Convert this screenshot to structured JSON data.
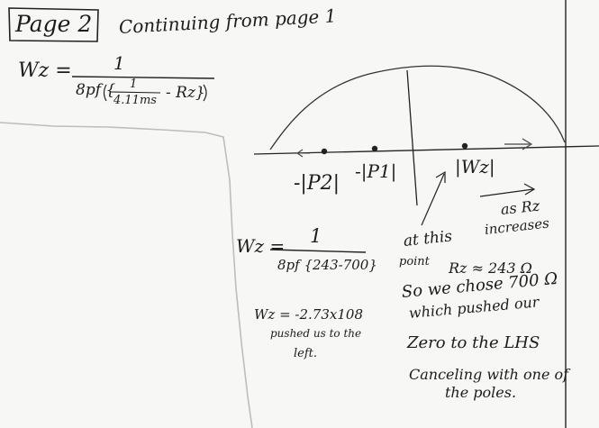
{
  "header": {
    "page_label": "Page 2",
    "continuing": "Continuing from page 1"
  },
  "eq1": {
    "lhs": "Wz =",
    "numerator": "1",
    "denominator_prefix": "8pf {",
    "inner_numerator": "1",
    "inner_denominator": "4.11ms",
    "denominator_suffix": "- Rz}"
  },
  "axis_labels": {
    "p2": "-|P2|",
    "p1": "-|P1|",
    "wz": "|Wz|"
  },
  "arrow_note": {
    "line1": "as Rz",
    "line2": "increases"
  },
  "eq2": {
    "lhs": "Wz =",
    "numerator": "1",
    "denominator": "8pf {243-700}"
  },
  "result": {
    "line1": "Wz = -2.73x108",
    "line2": "pushed us to the",
    "line3": "left."
  },
  "note": {
    "line1": "at this",
    "line2": "point",
    "rz_value": "Rz ≈ 243 Ω",
    "lines": [
      "So we chose 700 Ω",
      "which pushed our",
      "Zero to the LHS",
      "Canceling with one of",
      "the poles."
    ]
  }
}
